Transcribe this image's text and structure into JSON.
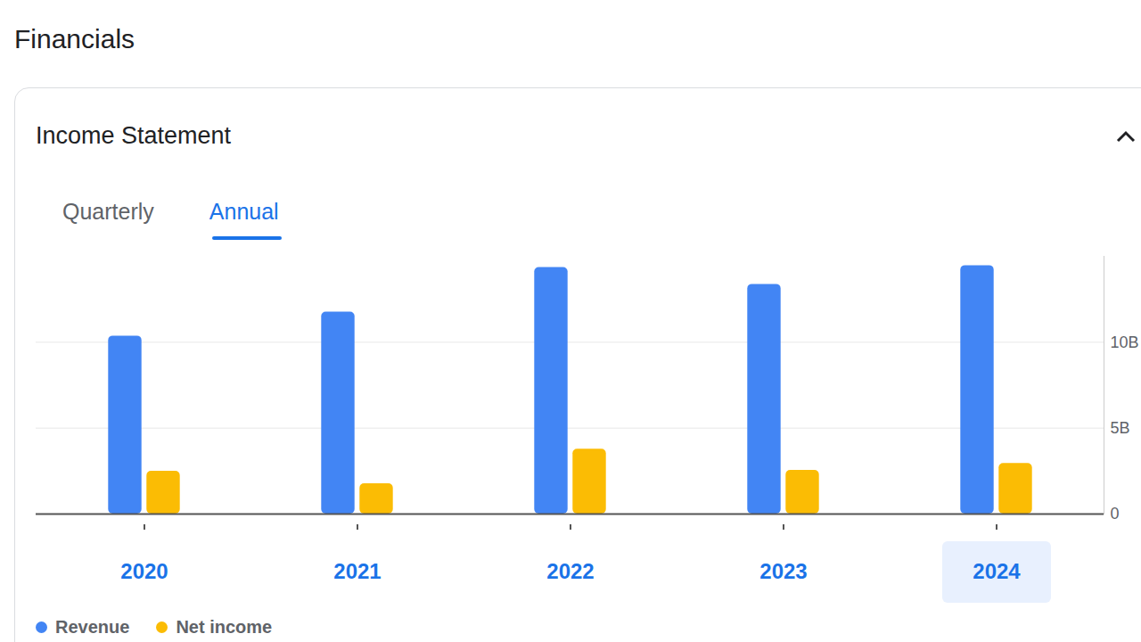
{
  "header": "Financials",
  "tabs": [
    "Quarterly",
    "Annual"
  ],
  "selected_tab": "Annual",
  "selected_category": "2024",
  "chart_data": {
    "type": "bar",
    "title": "Income Statement",
    "categories": [
      "2020",
      "2021",
      "2022",
      "2023",
      "2024"
    ],
    "series": [
      {
        "name": "Revenue",
        "color": "#4285f4",
        "values": [
          10.36,
          11.76,
          14.35,
          13.37,
          14.46
        ]
      },
      {
        "name": "Net income",
        "color": "#fbbc04",
        "values": [
          2.49,
          1.76,
          3.78,
          2.54,
          2.95
        ]
      }
    ],
    "ylim": [
      0,
      15
    ],
    "yticks": [
      0,
      {
        "value": 5,
        "label": "5B"
      },
      {
        "value": 10,
        "label": "10B"
      }
    ],
    "grid": true,
    "legend": "bottom-left"
  }
}
